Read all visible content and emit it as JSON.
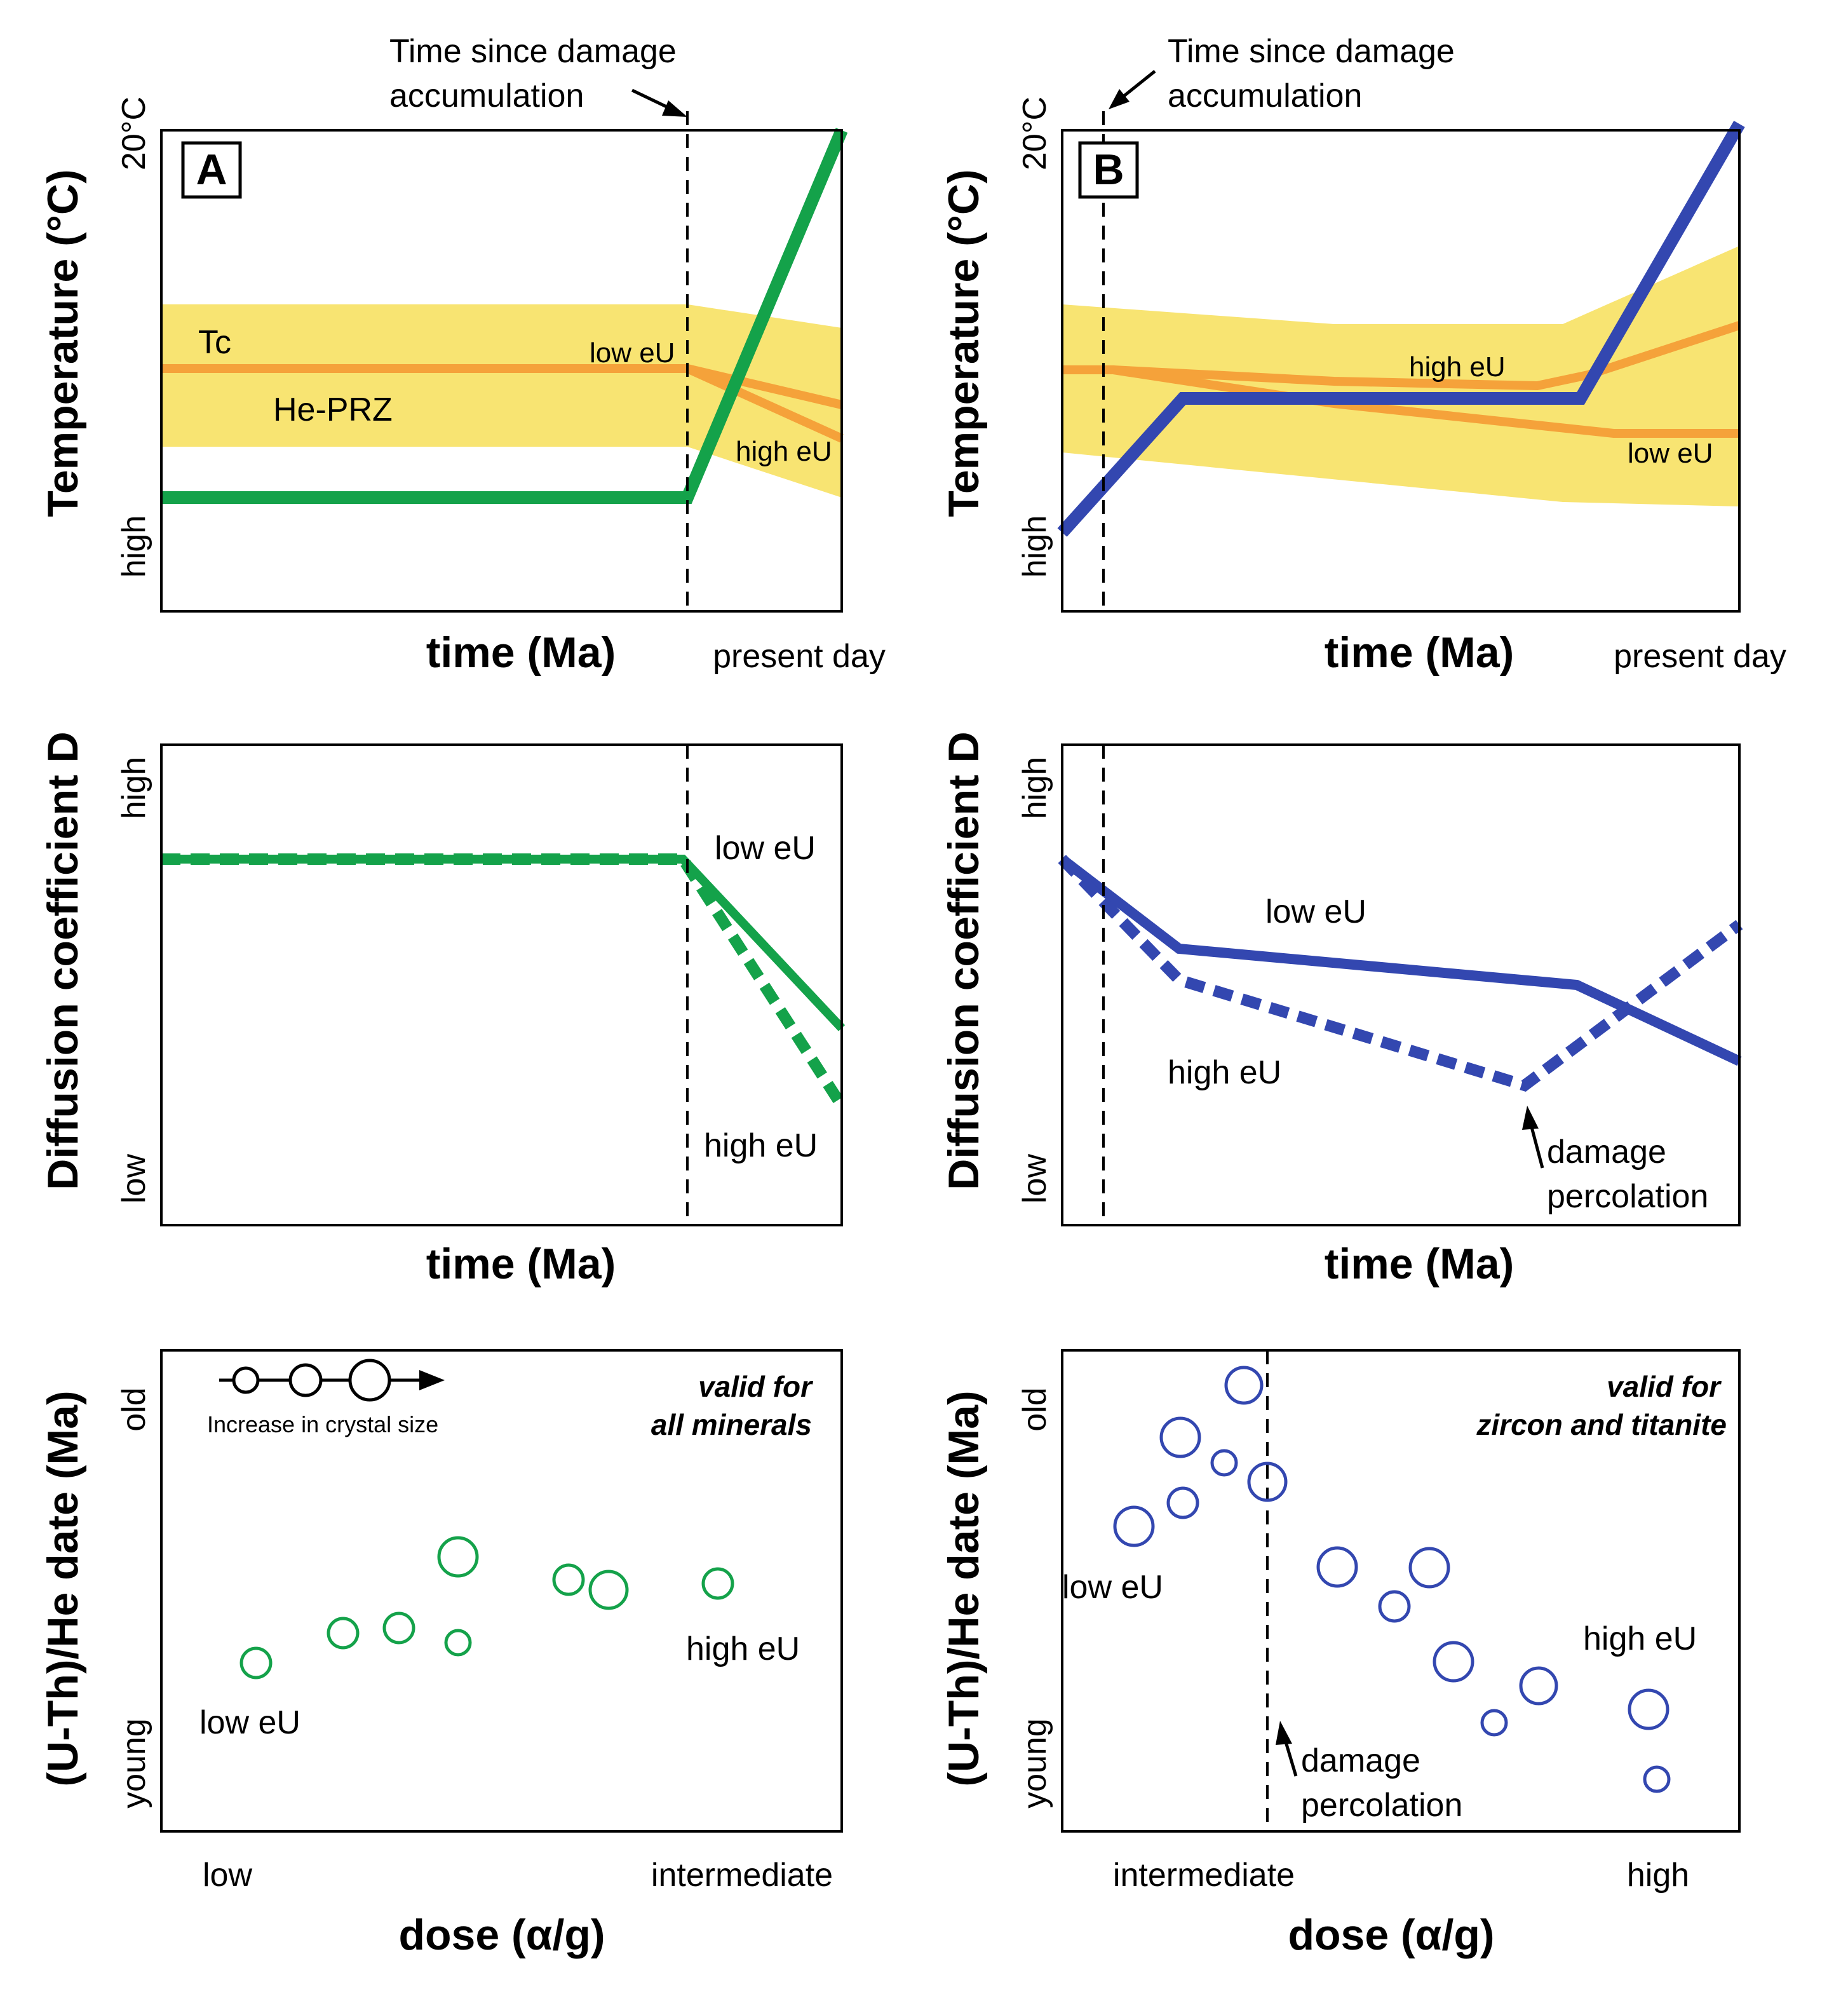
{
  "colors": {
    "green": "#14a24a",
    "blue": "#3347b0",
    "orange": "#f5a23a",
    "yellow": "#f8e472",
    "black": "#000000"
  },
  "panelA": {
    "letter": "A",
    "annotation_line1": "Time since damage",
    "annotation_line2": "accumulation",
    "ylabel": "Temperature (°C)",
    "ytick_top": "20°C",
    "ytick_bottom": "high",
    "xlabel": "time (Ma)",
    "xnote": "present day",
    "tc_label": "Tc",
    "prz_label": "He-PRZ",
    "low_eu": "low eU",
    "high_eu": "high eU"
  },
  "panelB": {
    "letter": "B",
    "annotation_line1": "Time since damage",
    "annotation_line2": "accumulation",
    "ylabel": "Temperature (°C)",
    "ytick_top": "20°C",
    "ytick_bottom": "high",
    "xlabel": "time (Ma)",
    "xnote": "present day",
    "high_eu": "high eU",
    "low_eu": "low eU"
  },
  "panelC": {
    "ylabel": "Diffusion coefficient D",
    "ytick_top": "high",
    "ytick_bottom": "low",
    "xlabel": "time (Ma)",
    "low_eu": "low eU",
    "high_eu": "high eU"
  },
  "panelD": {
    "ylabel": "Diffusion coefficient D",
    "ytick_top": "high",
    "ytick_bottom": "low",
    "xlabel": "time (Ma)",
    "low_eu": "low eU",
    "high_eu": "high eU",
    "percolation_line1": "damage",
    "percolation_line2": "percolation"
  },
  "panelE": {
    "ylabel": "(U-Th)/He date (Ma)",
    "ytick_top": "old",
    "ytick_bottom": "young",
    "xlabel": "dose (α/g)",
    "xtick_left": "low",
    "xtick_right": "intermediate",
    "valid_line1": "valid for",
    "valid_line2": "all minerals",
    "legend_text": "Increase in crystal size",
    "low_eu": "low eU",
    "high_eu": "high eU"
  },
  "panelF": {
    "ylabel": "(U-Th)/He date (Ma)",
    "ytick_top": "old",
    "ytick_bottom": "young",
    "xlabel": "dose (α/g)",
    "xtick_left": "intermediate",
    "xtick_right": "high",
    "valid_line1": "valid for",
    "valid_line2": "zircon and titanite",
    "low_eu": "low eU",
    "high_eu": "high eU",
    "percolation_line1": "damage",
    "percolation_line2": "percolation"
  }
}
